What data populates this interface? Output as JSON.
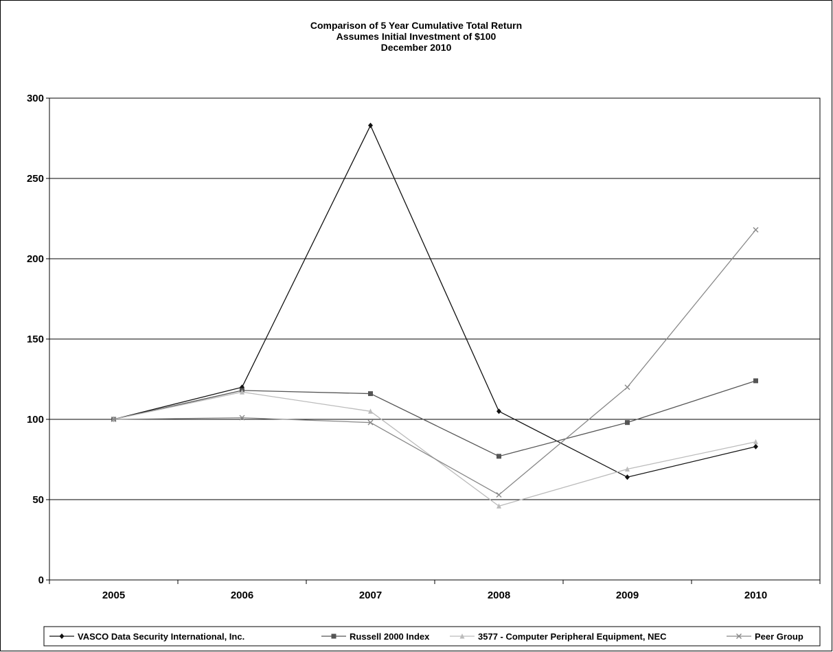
{
  "chart_data": {
    "type": "line",
    "title": [
      "Comparison of 5 Year Cumulative Total Return",
      "Assumes Initial Investment of $100",
      "December 2010"
    ],
    "xlabel": "",
    "ylabel": "",
    "categories": [
      "2005",
      "2006",
      "2007",
      "2008",
      "2009",
      "2010"
    ],
    "ylim": [
      0,
      300
    ],
    "yticks": [
      0,
      50,
      100,
      150,
      200,
      250,
      300
    ],
    "grid": true,
    "legend_position": "bottom",
    "series": [
      {
        "name": "VASCO Data Security International, Inc.",
        "values": [
          100,
          120,
          283,
          105,
          64,
          83
        ],
        "color": "#111111",
        "marker": "diamond"
      },
      {
        "name": "Russell 2000 Index",
        "values": [
          100,
          118,
          116,
          77,
          98,
          124
        ],
        "color": "#555555",
        "marker": "square"
      },
      {
        "name": "3577 - Computer Peripheral Equipment, NEC",
        "values": [
          100,
          117,
          105,
          46,
          69,
          86
        ],
        "color": "#bbbbbb",
        "marker": "triangle"
      },
      {
        "name": "Peer Group",
        "values": [
          100,
          101,
          98,
          53,
          120,
          218
        ],
        "color": "#888888",
        "marker": "x"
      }
    ]
  }
}
